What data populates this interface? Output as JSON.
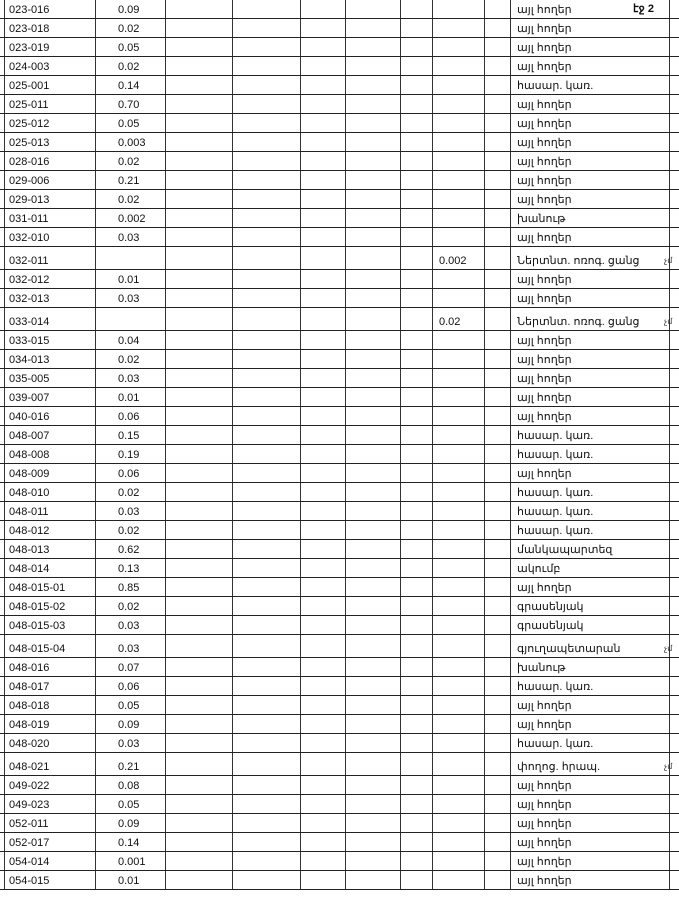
{
  "page_label": "էջ 2",
  "side_mark": "չմ",
  "rows": [
    {
      "code": "023-016",
      "area": "0.09",
      "extra": "",
      "type": "այլ հողեր"
    },
    {
      "code": "023-018",
      "area": "0.02",
      "extra": "",
      "type": "այլ հողեր"
    },
    {
      "code": "023-019",
      "area": "0.05",
      "extra": "",
      "type": "այլ հողեր"
    },
    {
      "code": "024-003",
      "area": "0.02",
      "extra": "",
      "type": "այլ հողեր"
    },
    {
      "code": "025-001",
      "area": "0.14",
      "extra": "",
      "type": "հասար. կառ."
    },
    {
      "code": "025-011",
      "area": "0.70",
      "extra": "",
      "type": "այլ հողեր"
    },
    {
      "code": "025-012",
      "area": "0.05",
      "extra": "",
      "type": "այլ հողեր"
    },
    {
      "code": "025-013",
      "area": "0.003",
      "extra": "",
      "type": "այլ հողեր"
    },
    {
      "code": "028-016",
      "area": "0.02",
      "extra": "",
      "type": "այլ հողեր"
    },
    {
      "code": "029-006",
      "area": "0.21",
      "extra": "",
      "type": "այլ հողեր"
    },
    {
      "code": "029-013",
      "area": "0.02",
      "extra": "",
      "type": "այլ հողեր"
    },
    {
      "code": "031-011",
      "area": "0.002",
      "extra": "",
      "type": "խանութ"
    },
    {
      "code": "032-010",
      "area": "0.03",
      "extra": "",
      "type": "այլ հողեր"
    },
    {
      "code": "032-011",
      "area": "",
      "extra": "0.002",
      "type": "Ներտնտ. ոռոգ. ցանց",
      "marked": true
    },
    {
      "code": "032-012",
      "area": "0.01",
      "extra": "",
      "type": "այլ հողեր"
    },
    {
      "code": "032-013",
      "area": "0.03",
      "extra": "",
      "type": "այլ հողեր"
    },
    {
      "code": "033-014",
      "area": "",
      "extra": "0.02",
      "type": "Ներտնտ. ոռոգ. ցանց",
      "marked": true
    },
    {
      "code": "033-015",
      "area": "0.04",
      "extra": "",
      "type": "այլ հողեր"
    },
    {
      "code": "034-013",
      "area": "0.02",
      "extra": "",
      "type": "այլ հողեր"
    },
    {
      "code": "035-005",
      "area": "0.03",
      "extra": "",
      "type": "այլ հողեր"
    },
    {
      "code": "039-007",
      "area": "0.01",
      "extra": "",
      "type": "այլ հողեր"
    },
    {
      "code": "040-016",
      "area": "0.06",
      "extra": "",
      "type": "այլ հողեր"
    },
    {
      "code": "048-007",
      "area": "0.15",
      "extra": "",
      "type": "հասար. կառ."
    },
    {
      "code": "048-008",
      "area": "0.19",
      "extra": "",
      "type": "հասար. կառ."
    },
    {
      "code": "048-009",
      "area": "0.06",
      "extra": "",
      "type": "այլ հողեր"
    },
    {
      "code": "048-010",
      "area": "0.02",
      "extra": "",
      "type": "հասար. կառ."
    },
    {
      "code": "048-011",
      "area": "0.03",
      "extra": "",
      "type": "հասար. կառ."
    },
    {
      "code": "048-012",
      "area": "0.02",
      "extra": "",
      "type": "հասար. կառ."
    },
    {
      "code": "048-013",
      "area": "0.62",
      "extra": "",
      "type": "մանկապարտեզ"
    },
    {
      "code": "048-014",
      "area": "0.13",
      "extra": "",
      "type": "ակումբ"
    },
    {
      "code": "048-015-01",
      "area": "0.85",
      "extra": "",
      "type": "այլ հողեր"
    },
    {
      "code": "048-015-02",
      "area": "0.02",
      "extra": "",
      "type": "գրասենյակ"
    },
    {
      "code": "048-015-03",
      "area": "0.03",
      "extra": "",
      "type": "գրասենյակ"
    },
    {
      "code": "048-015-04",
      "area": "0.03",
      "extra": "",
      "type": "գյուղապետարան",
      "marked": true
    },
    {
      "code": "048-016",
      "area": "0.07",
      "extra": "",
      "type": "խանութ"
    },
    {
      "code": "048-017",
      "area": "0.06",
      "extra": "",
      "type": "հասար. կառ."
    },
    {
      "code": "048-018",
      "area": "0.05",
      "extra": "",
      "type": "այլ հողեր"
    },
    {
      "code": "048-019",
      "area": "0.09",
      "extra": "",
      "type": "այլ հողեր"
    },
    {
      "code": "048-020",
      "area": "0.03",
      "extra": "",
      "type": "հասար. կառ."
    },
    {
      "code": "048-021",
      "area": "0.21",
      "extra": "",
      "type": "փողոց. հրապ.",
      "marked": true
    },
    {
      "code": "049-022",
      "area": "0.08",
      "extra": "",
      "type": "այլ հողեր"
    },
    {
      "code": "049-023",
      "area": "0.05",
      "extra": "",
      "type": "այլ հողեր"
    },
    {
      "code": "052-011",
      "area": "0.09",
      "extra": "",
      "type": "այլ հողեր"
    },
    {
      "code": "052-017",
      "area": "0.14",
      "extra": "",
      "type": "այլ հողեր"
    },
    {
      "code": "054-014",
      "area": "0.001",
      "extra": "",
      "type": "այլ հողեր"
    },
    {
      "code": "054-015",
      "area": "0.01",
      "extra": "",
      "type": "այլ հողեր"
    }
  ]
}
